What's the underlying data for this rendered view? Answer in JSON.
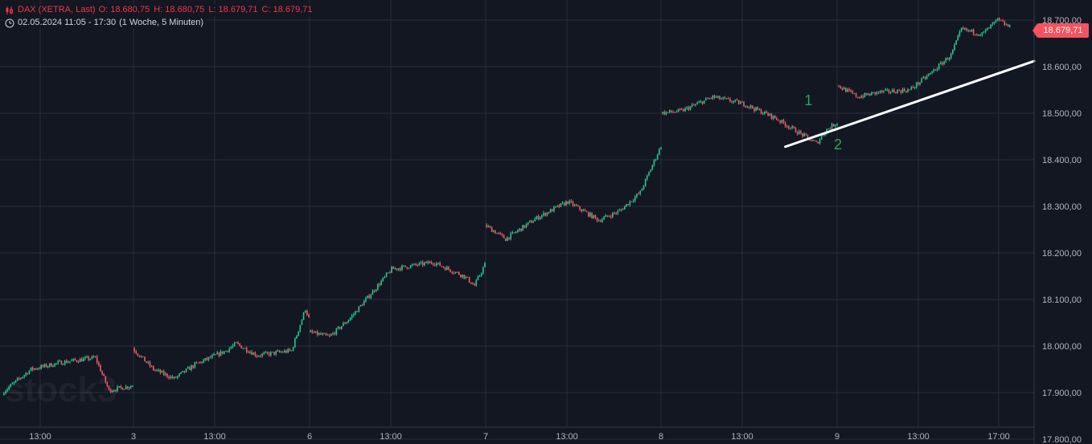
{
  "header": {
    "symbol": "DAX (XETRA, Last)",
    "open": "O: 18.680,75",
    "high": "H: 18.680,75",
    "low": "L: 18.679,71",
    "close": "C: 18.679,71",
    "date_range": "02.05.2024 11:05 - 17:30",
    "period": "(1 Woche, 5 Minuten)"
  },
  "watermark": "stock3",
  "last_price": "18.679,71",
  "colors": {
    "up": "#26c792",
    "down": "#f05a64",
    "background": "#131722",
    "grid": "#2a2e39",
    "trendline": "#ffffff",
    "annotation": "#26a65b",
    "badge": "#f7525f"
  },
  "chart_data": {
    "type": "candlestick",
    "ylim": [
      17800,
      18710
    ],
    "y_ticks": [
      17800,
      17900,
      18000,
      18100,
      18200,
      18300,
      18400,
      18500,
      18600,
      18700
    ],
    "y_tick_labels": [
      "17.800,00",
      "17.900,00",
      "18.000,00",
      "18.100,00",
      "18.200,00",
      "18.300,00",
      "18.400,00",
      "18.500,00",
      "18.600,00",
      "18.700,00"
    ],
    "x_tick_labels": [
      "13:00",
      "3",
      "13:00",
      "6",
      "13:00",
      "7",
      "13:00",
      "8",
      "13:00",
      "9",
      "13:00",
      "17:00"
    ],
    "price_path": [
      [
        "02 11:05",
        17900
      ],
      [
        "02 12:30",
        17950
      ],
      [
        "02 14:00",
        17965
      ],
      [
        "02 15:40",
        17975
      ],
      [
        "02 16:20",
        17905
      ],
      [
        "02 17:30",
        17915
      ],
      [
        "03 09:00",
        17995
      ],
      [
        "03 10:00",
        17950
      ],
      [
        "03 11:00",
        17930
      ],
      [
        "03 12:00",
        17960
      ],
      [
        "03 13:30",
        17990
      ],
      [
        "03 14:00",
        18005
      ],
      [
        "03 15:00",
        17980
      ],
      [
        "03 16:40",
        17990
      ],
      [
        "03 17:20",
        18080
      ],
      [
        "03 17:30",
        18060
      ],
      [
        "06 09:00",
        18030
      ],
      [
        "06 10:00",
        18020
      ],
      [
        "06 11:00",
        18060
      ],
      [
        "06 13:00",
        18165
      ],
      [
        "06 15:00",
        18180
      ],
      [
        "06 16:30",
        18150
      ],
      [
        "06 17:00",
        18130
      ],
      [
        "06 17:30",
        18175
      ],
      [
        "07 09:00",
        18260
      ],
      [
        "07 10:00",
        18230
      ],
      [
        "07 11:30",
        18275
      ],
      [
        "07 13:00",
        18310
      ],
      [
        "07 14:30",
        18270
      ],
      [
        "07 15:30",
        18290
      ],
      [
        "07 16:30",
        18330
      ],
      [
        "07 17:00",
        18380
      ],
      [
        "07 17:30",
        18430
      ],
      [
        "08 09:00",
        18500
      ],
      [
        "08 10:00",
        18505
      ],
      [
        "08 11:30",
        18535
      ],
      [
        "08 13:00",
        18520
      ],
      [
        "08 14:30",
        18490
      ],
      [
        "08 16:30",
        18435
      ],
      [
        "08 17:00",
        18465
      ],
      [
        "08 17:30",
        18480
      ],
      [
        "09 09:00",
        18560
      ],
      [
        "09 10:00",
        18535
      ],
      [
        "09 11:00",
        18545
      ],
      [
        "09 12:30",
        18550
      ],
      [
        "09 13:30",
        18585
      ],
      [
        "09 14:30",
        18625
      ],
      [
        "09 15:00",
        18680
      ],
      [
        "09 16:00",
        18670
      ],
      [
        "09 16:45",
        18700
      ],
      [
        "09 17:30",
        18680
      ]
    ],
    "trendline": {
      "from": [
        "08 15:00",
        18428
      ],
      "to": [
        "09 17:30",
        18605
      ],
      "color": "#ffffff"
    },
    "annotations": [
      {
        "label": "1",
        "x": "08 16:00",
        "y": 18510
      },
      {
        "label": "2",
        "x": "08 17:30",
        "y": 18460
      }
    ]
  }
}
